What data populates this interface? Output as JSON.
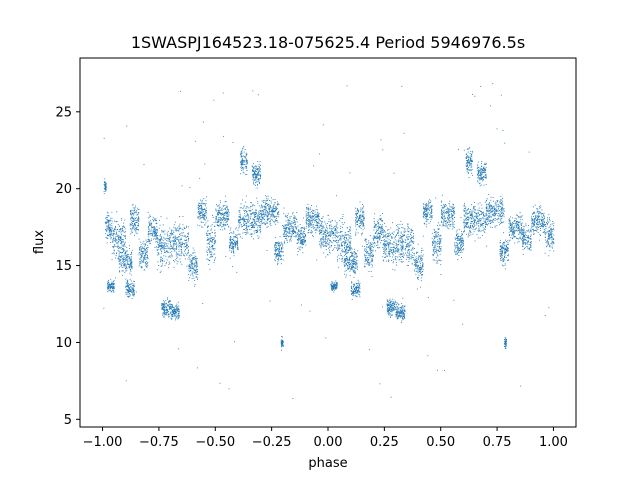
{
  "chart_data": {
    "type": "scatter",
    "title": "1SWASPJ164523.18-075625.4 Period 5946976.5s",
    "xlabel": "phase",
    "ylabel": "flux",
    "xlim": [
      -1.1,
      1.1
    ],
    "ylim": [
      4.5,
      28.5
    ],
    "xticks": [
      -1.0,
      -0.75,
      -0.5,
      -0.25,
      0.0,
      0.25,
      0.5,
      0.75,
      1.0
    ],
    "xtick_labels": [
      "−1.00",
      "−0.75",
      "−0.50",
      "−0.25",
      "0.00",
      "0.25",
      "0.50",
      "0.75",
      "1.00"
    ],
    "yticks": [
      5,
      10,
      15,
      20,
      25
    ],
    "ytick_labels": [
      "5",
      "10",
      "15",
      "20",
      "25"
    ],
    "grid": false,
    "point_color": "#1f77b4",
    "series": [
      {
        "values_note_excluded": true,
        "segments": [
          {
            "phase": [
              -0.99,
              -0.96
            ],
            "center": 17.5,
            "spread": 1.0
          },
          {
            "phase": [
              -0.98,
              -0.95
            ],
            "center": 13.7,
            "spread": 0.4
          },
          {
            "phase": [
              -0.995,
              -0.985
            ],
            "center": 20.2,
            "spread": 0.5
          },
          {
            "phase": [
              -0.96,
              -0.9
            ],
            "center": 16.8,
            "spread": 1.5
          },
          {
            "phase": [
              -0.93,
              -0.87
            ],
            "center": 15.3,
            "spread": 1.0
          },
          {
            "phase": [
              -0.9,
              -0.86
            ],
            "center": 13.5,
            "spread": 0.6
          },
          {
            "phase": [
              -0.88,
              -0.84
            ],
            "center": 18.0,
            "spread": 1.0
          },
          {
            "phase": [
              -0.84,
              -0.8
            ],
            "center": 15.8,
            "spread": 1.2
          },
          {
            "phase": [
              -0.8,
              -0.76
            ],
            "center": 17.3,
            "spread": 1.2
          },
          {
            "phase": [
              -0.76,
              -0.7
            ],
            "center": 16.3,
            "spread": 1.5
          },
          {
            "phase": [
              -0.74,
              -0.7
            ],
            "center": 12.3,
            "spread": 0.6
          },
          {
            "phase": [
              -0.7,
              -0.66
            ],
            "center": 12.0,
            "spread": 0.6
          },
          {
            "phase": [
              -0.7,
              -0.62
            ],
            "center": 16.5,
            "spread": 1.4
          },
          {
            "phase": [
              -0.62,
              -0.58
            ],
            "center": 15.0,
            "spread": 1.2
          },
          {
            "phase": [
              -0.58,
              -0.54
            ],
            "center": 18.5,
            "spread": 1.0
          },
          {
            "phase": [
              -0.54,
              -0.5
            ],
            "center": 16.5,
            "spread": 1.5
          },
          {
            "phase": [
              -0.5,
              -0.44
            ],
            "center": 18.3,
            "spread": 1.0
          },
          {
            "phase": [
              -0.44,
              -0.4
            ],
            "center": 16.5,
            "spread": 1.0
          },
          {
            "phase": [
              -0.39,
              -0.36
            ],
            "center": 21.8,
            "spread": 0.9
          },
          {
            "phase": [
              -0.4,
              -0.3
            ],
            "center": 18.0,
            "spread": 1.2
          },
          {
            "phase": [
              -0.34,
              -0.3
            ],
            "center": 21.0,
            "spread": 0.8
          },
          {
            "phase": [
              -0.3,
              -0.22
            ],
            "center": 18.5,
            "spread": 1.0
          },
          {
            "phase": [
              -0.24,
              -0.2
            ],
            "center": 16.0,
            "spread": 1.0
          },
          {
            "phase": [
              -0.21,
              -0.2
            ],
            "center": 10.0,
            "spread": 0.4
          },
          {
            "phase": [
              -0.2,
              -0.14
            ],
            "center": 17.5,
            "spread": 1.0
          },
          {
            "phase": [
              -0.14,
              -0.1
            ],
            "center": 16.8,
            "spread": 1.0
          },
          {
            "phase": [
              -0.1,
              -0.04
            ],
            "center": 18.0,
            "spread": 1.0
          },
          {
            "phase": [
              -0.04,
              0.04
            ],
            "center": 17.0,
            "spread": 1.3
          },
          {
            "phase": [
              0.01,
              0.04
            ],
            "center": 13.7,
            "spread": 0.4
          },
          {
            "phase": [
              0.04,
              0.1
            ],
            "center": 16.5,
            "spread": 1.5
          },
          {
            "phase": [
              0.07,
              0.13
            ],
            "center": 15.3,
            "spread": 1.0
          },
          {
            "phase": [
              0.1,
              0.14
            ],
            "center": 13.5,
            "spread": 0.6
          },
          {
            "phase": [
              0.12,
              0.16
            ],
            "center": 18.0,
            "spread": 1.0
          },
          {
            "phase": [
              0.16,
              0.2
            ],
            "center": 15.8,
            "spread": 1.2
          },
          {
            "phase": [
              0.2,
              0.24
            ],
            "center": 17.3,
            "spread": 1.2
          },
          {
            "phase": [
              0.24,
              0.3
            ],
            "center": 16.3,
            "spread": 1.5
          },
          {
            "phase": [
              0.26,
              0.3
            ],
            "center": 12.3,
            "spread": 0.6
          },
          {
            "phase": [
              0.3,
              0.34
            ],
            "center": 12.0,
            "spread": 0.6
          },
          {
            "phase": [
              0.3,
              0.38
            ],
            "center": 16.5,
            "spread": 1.4
          },
          {
            "phase": [
              0.38,
              0.42
            ],
            "center": 15.0,
            "spread": 1.2
          },
          {
            "phase": [
              0.42,
              0.46
            ],
            "center": 18.5,
            "spread": 1.0
          },
          {
            "phase": [
              0.46,
              0.5
            ],
            "center": 16.5,
            "spread": 1.5
          },
          {
            "phase": [
              0.5,
              0.56
            ],
            "center": 18.3,
            "spread": 1.0
          },
          {
            "phase": [
              0.56,
              0.6
            ],
            "center": 16.5,
            "spread": 1.0
          },
          {
            "phase": [
              0.61,
              0.64
            ],
            "center": 21.8,
            "spread": 0.9
          },
          {
            "phase": [
              0.6,
              0.7
            ],
            "center": 18.0,
            "spread": 1.2
          },
          {
            "phase": [
              0.66,
              0.7
            ],
            "center": 21.0,
            "spread": 0.8
          },
          {
            "phase": [
              0.7,
              0.78
            ],
            "center": 18.5,
            "spread": 1.0
          },
          {
            "phase": [
              0.76,
              0.8
            ],
            "center": 16.0,
            "spread": 1.0
          },
          {
            "phase": [
              0.78,
              0.79
            ],
            "center": 10.0,
            "spread": 0.4
          },
          {
            "phase": [
              0.8,
              0.86
            ],
            "center": 17.5,
            "spread": 1.0
          },
          {
            "phase": [
              0.86,
              0.9
            ],
            "center": 16.8,
            "spread": 1.0
          },
          {
            "phase": [
              0.9,
              0.96
            ],
            "center": 18.0,
            "spread": 1.0
          },
          {
            "phase": [
              0.96,
              1.0
            ],
            "center": 17.0,
            "spread": 1.3
          }
        ]
      }
    ]
  }
}
